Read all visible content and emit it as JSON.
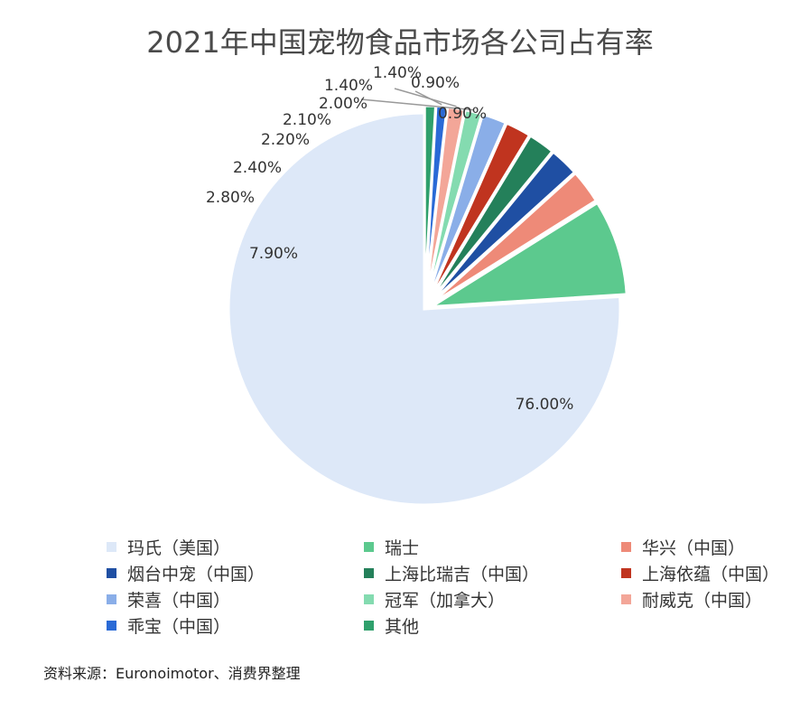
{
  "chart_data": {
    "type": "pie",
    "title": "2021年中国宠物食品市场各公司占有率",
    "start": "12 o'clock, counter-clockwise",
    "slices": [
      {
        "label": "玛氏（美国）",
        "value": 76.0,
        "value_label": "76.00%",
        "color": "#dde8f8"
      },
      {
        "label": "瑞士",
        "value": 7.9,
        "value_label": "7.90%",
        "color": "#5cc98e"
      },
      {
        "label": "华兴（中国）",
        "value": 2.8,
        "value_label": "2.80%",
        "color": "#ee8a78"
      },
      {
        "label": "烟台中宠（中国）",
        "value": 2.4,
        "value_label": "2.40%",
        "color": "#1f4fa3"
      },
      {
        "label": "上海比瑞吉（中国）",
        "value": 2.2,
        "value_label": "2.20%",
        "color": "#24805a"
      },
      {
        "label": "上海依蕴（中国）",
        "value": 2.1,
        "value_label": "2.10%",
        "color": "#c0341f"
      },
      {
        "label": "荣喜（中国）",
        "value": 2.0,
        "value_label": "2.00%",
        "color": "#8aaee8"
      },
      {
        "label": "冠军（加拿大）",
        "value": 1.4,
        "value_label": "1.40%",
        "color": "#84dbb0"
      },
      {
        "label": "耐威克（中国）",
        "value": 1.4,
        "value_label": "1.40%",
        "color": "#f3a698"
      },
      {
        "label": "乖宝（中国）",
        "value": 0.9,
        "value_label": "0.90%",
        "color": "#2a6ad6"
      },
      {
        "label": "其他",
        "value": 0.9,
        "value_label": "0.90%",
        "color": "#2fa06c"
      }
    ]
  },
  "source_note": "资料来源：Euronoimotor、消费界整理"
}
